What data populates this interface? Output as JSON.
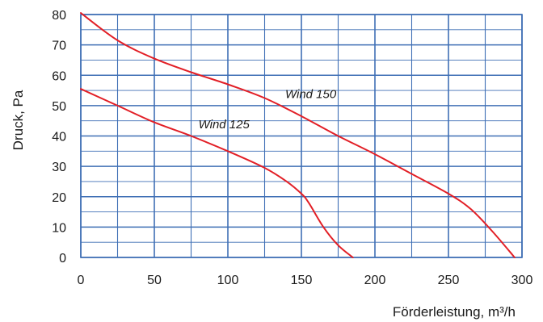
{
  "chart_data": {
    "type": "line",
    "xlabel": "Förderleistung, m³/h",
    "ylabel": "Druck, Pa",
    "xlim": [
      0,
      300
    ],
    "ylim": [
      0,
      80
    ],
    "x_ticks": [
      0,
      50,
      100,
      150,
      200,
      250,
      300
    ],
    "y_ticks": [
      0,
      10,
      20,
      30,
      40,
      50,
      60,
      70,
      80
    ],
    "x_minor_step": 25,
    "y_minor_step": 5,
    "grid": true,
    "colors": {
      "grid": "#3f6fb5",
      "line": "#e21f26"
    },
    "series": [
      {
        "name": "Wind 125",
        "x": [
          0,
          25,
          50,
          75,
          100,
          125,
          140,
          150,
          155,
          165,
          175,
          185
        ],
        "y": [
          55.5,
          50,
          44.5,
          40,
          35,
          29.5,
          25,
          21,
          18,
          10,
          4,
          0
        ]
      },
      {
        "name": "Wind 150",
        "x": [
          0,
          25,
          50,
          75,
          100,
          125,
          150,
          175,
          200,
          225,
          250,
          265,
          280,
          295
        ],
        "y": [
          80.5,
          71.5,
          65.5,
          61,
          57,
          52.5,
          46.5,
          40,
          34,
          27.5,
          21,
          16,
          8.5,
          0
        ]
      }
    ]
  }
}
